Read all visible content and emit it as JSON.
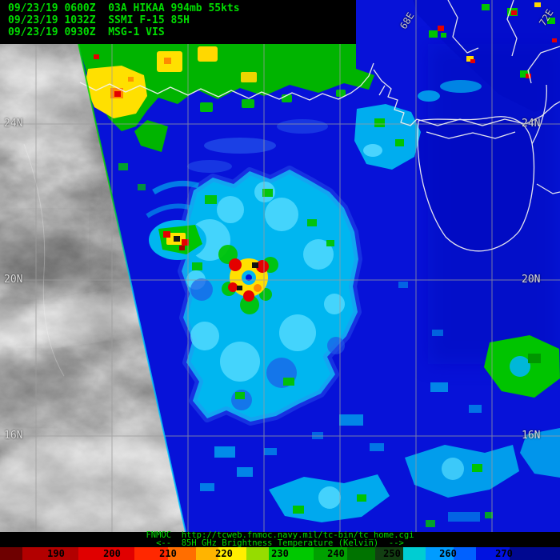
{
  "header": {
    "line1": "09/23/19 0600Z  03A HIKAA 994mb 55kts",
    "line2": "09/23/19 1032Z  SSMI F-15 85H",
    "line3": "09/23/19 0930Z  MSG-1 VIS"
  },
  "map": {
    "lat_labels": [
      "24N",
      "20N",
      "16N"
    ],
    "lon_labels": [
      "68E",
      "72E"
    ]
  },
  "footer": {
    "credit": "FNMOC  http://tcweb.fnmoc.navy.mil/tc-bin/tc_home.cgi",
    "caption": "<--  85H GHz Brightness Temperature (Kelvin)  -->",
    "colorbar": {
      "ticks": [
        {
          "label": "190",
          "pos": 10
        },
        {
          "label": "200",
          "pos": 20
        },
        {
          "label": "210",
          "pos": 30
        },
        {
          "label": "220",
          "pos": 40
        },
        {
          "label": "230",
          "pos": 50
        },
        {
          "label": "240",
          "pos": 60
        },
        {
          "label": "250",
          "pos": 70
        },
        {
          "label": "260",
          "pos": 80
        },
        {
          "label": "270",
          "pos": 90
        }
      ],
      "segments": [
        {
          "color": "#6e0000",
          "to": 4
        },
        {
          "color": "#b20000",
          "to": 14
        },
        {
          "color": "#e00000",
          "to": 24
        },
        {
          "color": "#ff2800",
          "to": 30
        },
        {
          "color": "#ff6e00",
          "to": 35
        },
        {
          "color": "#ffb400",
          "to": 39
        },
        {
          "color": "#ffee00",
          "to": 44
        },
        {
          "color": "#96dc00",
          "to": 48
        },
        {
          "color": "#00c800",
          "to": 56
        },
        {
          "color": "#00a000",
          "to": 62
        },
        {
          "color": "#007300",
          "to": 67
        },
        {
          "color": "#123f12",
          "to": 72
        },
        {
          "color": "#00cdd2",
          "to": 76
        },
        {
          "color": "#009cff",
          "to": 81
        },
        {
          "color": "#0061ff",
          "to": 85
        },
        {
          "color": "#0012e0",
          "to": 91
        },
        {
          "color": "#000890",
          "to": 100
        }
      ]
    }
  },
  "colors": {
    "annotation_green": "#00dc00",
    "swath_background_blue": "#0712d8",
    "storm_cyan": "#00b6f0",
    "convection_green": "#00c400",
    "convection_yellow": "#ffe000",
    "convection_red": "#e40000",
    "vis_gray": "#838383",
    "grid_gray": "#9c9c9c",
    "coastline_white": "#f0f0f0"
  }
}
